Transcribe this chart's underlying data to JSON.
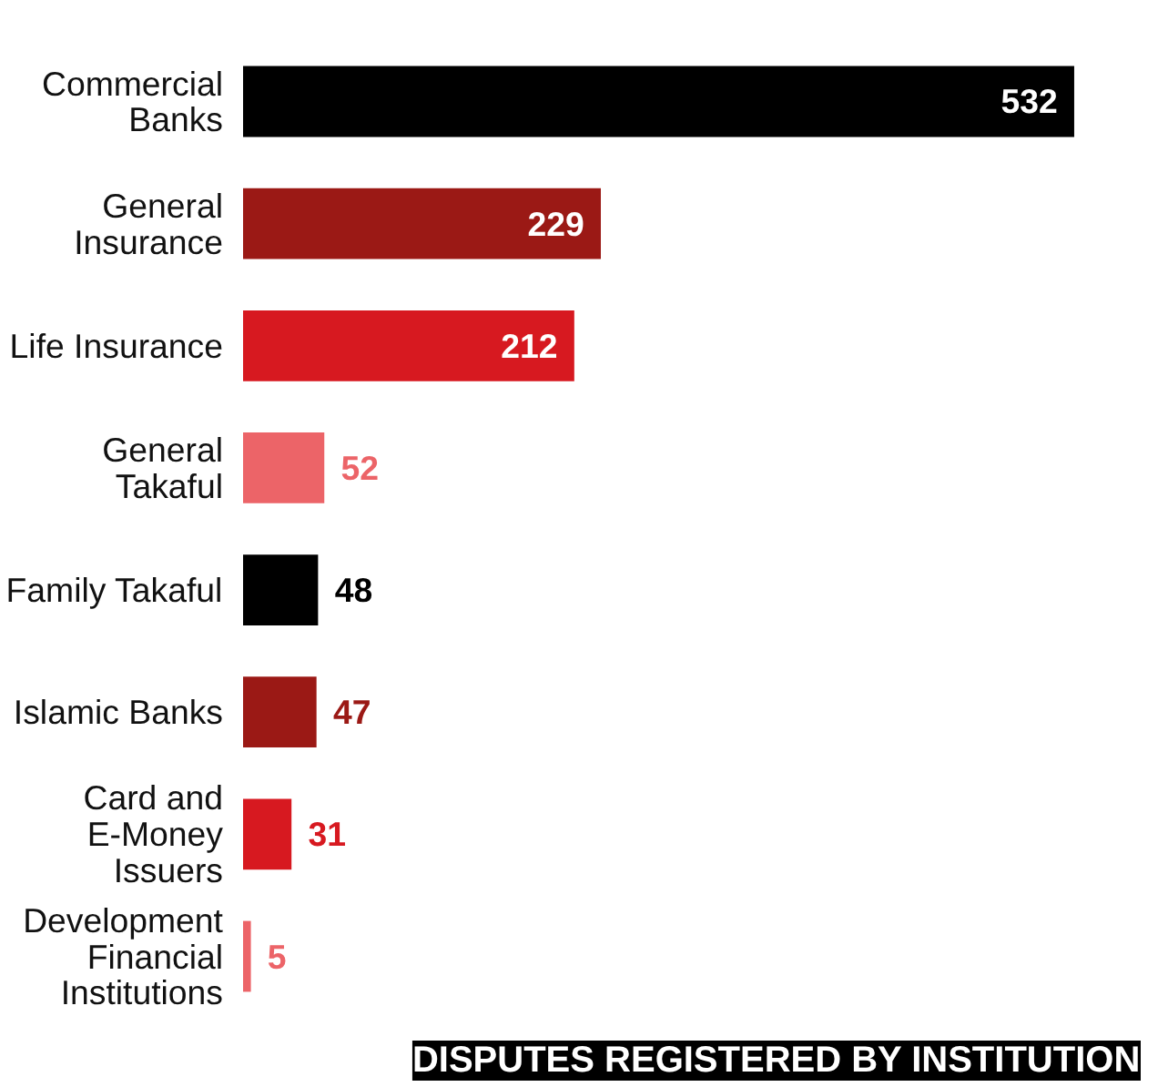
{
  "chart_data": {
    "type": "bar",
    "orientation": "horizontal",
    "title": "DISPUTES REGISTERED BY INSTITUTION",
    "categories": [
      "Commercial\nBanks",
      "General\nInsurance",
      "Life Insurance",
      "General\nTakaful",
      "Family Takaful",
      "Islamic Banks",
      "Card and\nE-Money\nIssuers",
      "Development\nFinancial\nInstitutions"
    ],
    "values": [
      532,
      229,
      212,
      52,
      48,
      47,
      31,
      5
    ],
    "colors": [
      "#000000",
      "#9b1915",
      "#d71920",
      "#ec6468",
      "#000000",
      "#9b1915",
      "#d71920",
      "#ec6468"
    ],
    "data_labels": true
  }
}
